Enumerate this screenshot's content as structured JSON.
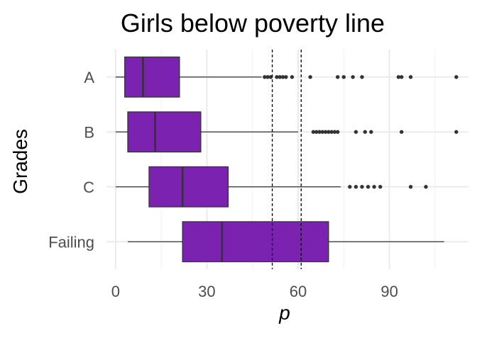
{
  "chart_data": {
    "type": "boxplot",
    "orientation": "horizontal",
    "title": "Girls below poverty line",
    "xlabel": "p",
    "ylabel": "Grades",
    "xlim": [
      -3,
      116
    ],
    "xticks": [
      0,
      30,
      60,
      90
    ],
    "categories": [
      "A",
      "B",
      "C",
      "Failing"
    ],
    "boxes": [
      {
        "category": "A",
        "whisker_low": 0,
        "q1": 3,
        "median": 9,
        "q3": 21,
        "whisker_high": 48,
        "outliers": [
          49,
          50,
          51,
          53,
          54,
          55,
          56,
          58,
          64,
          73,
          75,
          78,
          81,
          93,
          94,
          97,
          112
        ]
      },
      {
        "category": "B",
        "whisker_low": 0,
        "q1": 4,
        "median": 13,
        "q3": 28,
        "whisker_high": 60,
        "outliers": [
          65,
          66,
          67,
          68,
          69,
          70,
          71,
          72,
          73,
          79,
          82,
          84,
          94,
          112
        ]
      },
      {
        "category": "C",
        "whisker_low": 0,
        "q1": 11,
        "median": 22,
        "q3": 37,
        "whisker_high": 74,
        "outliers": [
          77,
          79,
          81,
          83,
          85,
          87,
          97,
          102
        ]
      },
      {
        "category": "Failing",
        "whisker_low": 4,
        "q1": 22,
        "median": 35,
        "q3": 70,
        "whisker_high": 108,
        "outliers": []
      }
    ],
    "reference_lines": [
      51.5,
      61
    ],
    "grid": true,
    "colors": {
      "box_fill": "#7b22b1",
      "box_stroke": "#333333",
      "grid": "#ebebeb",
      "tick_text": "#4d4d4d"
    }
  }
}
